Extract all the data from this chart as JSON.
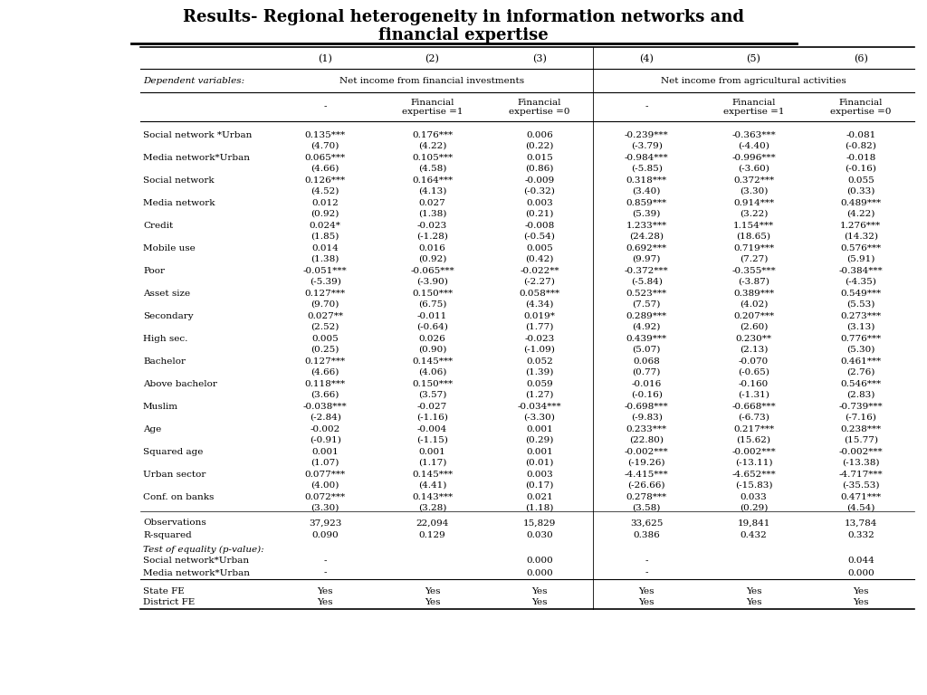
{
  "title_line1": "Results- Regional heterogeneity in information networks and",
  "title_line2": "financial expertise",
  "col_headers": [
    "(1)",
    "(2)",
    "(3)",
    "(4)",
    "(5)",
    "(6)"
  ],
  "dep_var_label": "Dependent variables:",
  "dep_var_group1": "Net income from financial investments",
  "dep_var_group2": "Net income from agricultural activities",
  "sub_headers": [
    "-",
    "Financial\nexpertise =1",
    "Financial\nexpertise =0",
    "-",
    "Financial\nexpertise =1",
    "Financial\nexpertise =0"
  ],
  "rows": [
    {
      "label": "Social network *Urban",
      "vals": [
        "0.135***",
        "0.176***",
        "0.006",
        "-0.239***",
        "-0.363***",
        "-0.081"
      ],
      "tstats": [
        "(4.70)",
        "(4.22)",
        "(0.22)",
        "(-3.79)",
        "(-4.40)",
        "(-0.82)"
      ]
    },
    {
      "label": "Media network*Urban",
      "vals": [
        "0.065***",
        "0.105***",
        "0.015",
        "-0.984***",
        "-0.996***",
        "-0.018"
      ],
      "tstats": [
        "(4.66)",
        "(4.58)",
        "(0.86)",
        "(-5.85)",
        "(-3.60)",
        "(-0.16)"
      ]
    },
    {
      "label": "Social network",
      "vals": [
        "0.126***",
        "0.164***",
        "-0.009",
        "0.318***",
        "0.372***",
        "0.055"
      ],
      "tstats": [
        "(4.52)",
        "(4.13)",
        "(-0.32)",
        "(3.40)",
        "(3.30)",
        "(0.33)"
      ]
    },
    {
      "label": "Media network",
      "vals": [
        "0.012",
        "0.027",
        "0.003",
        "0.859***",
        "0.914***",
        "0.489***"
      ],
      "tstats": [
        "(0.92)",
        "(1.38)",
        "(0.21)",
        "(5.39)",
        "(3.22)",
        "(4.22)"
      ]
    },
    {
      "label": "Credit",
      "vals": [
        "0.024*",
        "-0.023",
        "-0.008",
        "1.233***",
        "1.154***",
        "1.276***"
      ],
      "tstats": [
        "(1.85)",
        "(-1.28)",
        "(-0.54)",
        "(24.28)",
        "(18.65)",
        "(14.32)"
      ]
    },
    {
      "label": "Mobile use",
      "vals": [
        "0.014",
        "0.016",
        "0.005",
        "0.692***",
        "0.719***",
        "0.576***"
      ],
      "tstats": [
        "(1.38)",
        "(0.92)",
        "(0.42)",
        "(9.97)",
        "(7.27)",
        "(5.91)"
      ]
    },
    {
      "label": "Poor",
      "vals": [
        "-0.051***",
        "-0.065***",
        "-0.022**",
        "-0.372***",
        "-0.355***",
        "-0.384***"
      ],
      "tstats": [
        "(-5.39)",
        "(-3.90)",
        "(-2.27)",
        "(-5.84)",
        "(-3.87)",
        "(-4.35)"
      ]
    },
    {
      "label": "Asset size",
      "vals": [
        "0.127***",
        "0.150***",
        "0.058***",
        "0.523***",
        "0.389***",
        "0.549***"
      ],
      "tstats": [
        "(9.70)",
        "(6.75)",
        "(4.34)",
        "(7.57)",
        "(4.02)",
        "(5.53)"
      ]
    },
    {
      "label": "Secondary",
      "vals": [
        "0.027**",
        "-0.011",
        "0.019*",
        "0.289***",
        "0.207***",
        "0.273***"
      ],
      "tstats": [
        "(2.52)",
        "(-0.64)",
        "(1.77)",
        "(4.92)",
        "(2.60)",
        "(3.13)"
      ]
    },
    {
      "label": "High sec.",
      "vals": [
        "0.005",
        "0.026",
        "-0.023",
        "0.439***",
        "0.230**",
        "0.776***"
      ],
      "tstats": [
        "(0.25)",
        "(0.90)",
        "(-1.09)",
        "(5.07)",
        "(2.13)",
        "(5.30)"
      ]
    },
    {
      "label": "Bachelor",
      "vals": [
        "0.127***",
        "0.145***",
        "0.052",
        "0.068",
        "-0.070",
        "0.461***"
      ],
      "tstats": [
        "(4.66)",
        "(4.06)",
        "(1.39)",
        "(0.77)",
        "(-0.65)",
        "(2.76)"
      ]
    },
    {
      "label": "Above bachelor",
      "vals": [
        "0.118***",
        "0.150***",
        "0.059",
        "-0.016",
        "-0.160",
        "0.546***"
      ],
      "tstats": [
        "(3.66)",
        "(3.57)",
        "(1.27)",
        "(-0.16)",
        "(-1.31)",
        "(2.83)"
      ]
    },
    {
      "label": "Muslim",
      "vals": [
        "-0.038***",
        "-0.027",
        "-0.034***",
        "-0.698***",
        "-0.668***",
        "-0.739***"
      ],
      "tstats": [
        "(-2.84)",
        "(-1.16)",
        "(-3.30)",
        "(-9.83)",
        "(-6.73)",
        "(-7.16)"
      ]
    },
    {
      "label": "Age",
      "vals": [
        "-0.002",
        "-0.004",
        "0.001",
        "0.233***",
        "0.217***",
        "0.238***"
      ],
      "tstats": [
        "(-0.91)",
        "(-1.15)",
        "(0.29)",
        "(22.80)",
        "(15.62)",
        "(15.77)"
      ]
    },
    {
      "label": "Squared age",
      "vals": [
        "0.001",
        "0.001",
        "0.001",
        "-0.002***",
        "-0.002***",
        "-0.002***"
      ],
      "tstats": [
        "(1.07)",
        "(1.17)",
        "(0.01)",
        "(-19.26)",
        "(-13.11)",
        "(-13.38)"
      ]
    },
    {
      "label": "Urban sector",
      "vals": [
        "0.077***",
        "0.145***",
        "0.003",
        "-4.415***",
        "-4.652***",
        "-4.717***"
      ],
      "tstats": [
        "(4.00)",
        "(4.41)",
        "(0.17)",
        "(-26.66)",
        "(-15.83)",
        "(-35.53)"
      ]
    },
    {
      "label": "Conf. on banks",
      "vals": [
        "0.072***",
        "0.143***",
        "0.021",
        "0.278***",
        "0.033",
        "0.471***"
      ],
      "tstats": [
        "(3.30)",
        "(3.28)",
        "(1.18)",
        "(3.58)",
        "(0.29)",
        "(4.54)"
      ]
    }
  ],
  "observations": [
    "37,923",
    "22,094",
    "15,829",
    "33,625",
    "19,841",
    "13,784"
  ],
  "r_squared": [
    "0.090",
    "0.129",
    "0.030",
    "0.386",
    "0.432",
    "0.332"
  ],
  "state_fe": [
    "Yes",
    "Yes",
    "Yes",
    "Yes",
    "Yes",
    "Yes"
  ],
  "district_fe": [
    "Yes",
    "Yes",
    "Yes",
    "Yes",
    "Yes",
    "Yes"
  ]
}
